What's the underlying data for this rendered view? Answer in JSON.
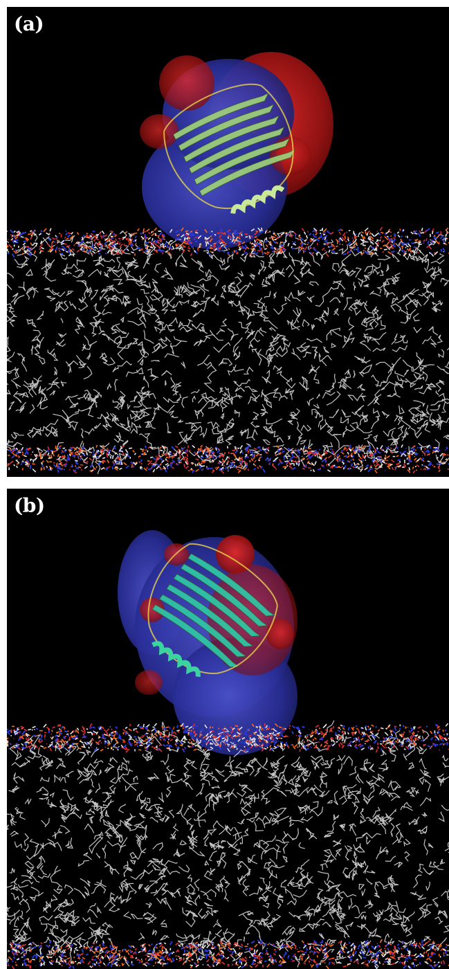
{
  "figure": {
    "panels": [
      {
        "label": "(a)"
      },
      {
        "label": "(b)"
      }
    ]
  },
  "colors": {
    "background": "#000000",
    "lipid_tail": "#e6e6e6",
    "phosphate": "#ff6a1a",
    "oxygen": "#e0303a",
    "nitrogen": "#2a3ad8",
    "negative_potential": "#c01818",
    "positive_potential": "#2a2fa0",
    "helix_a": "#c8e89a",
    "strand_a": "#9ed07a",
    "helix_b": "#3bd4a0",
    "strand_b": "#2fc8a6"
  }
}
